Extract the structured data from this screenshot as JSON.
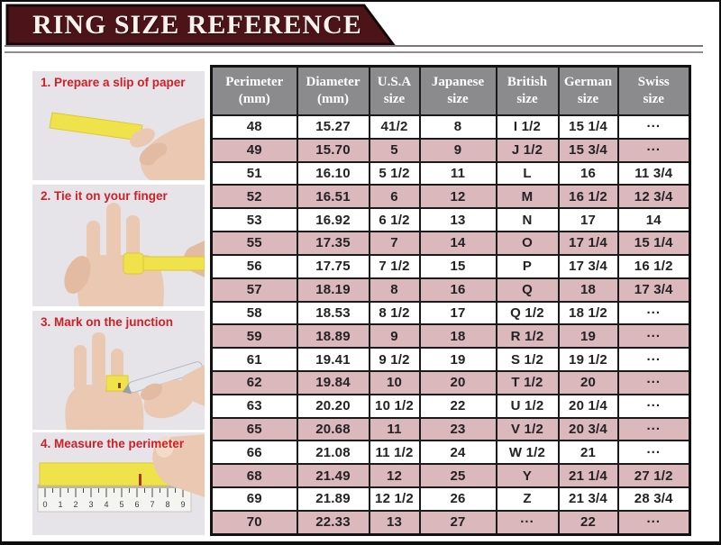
{
  "banner": {
    "title": "RING SIZE REFERENCE"
  },
  "steps": [
    {
      "label": "1. Prepare a slip of paper",
      "icon": "hand-holding-paper-slip"
    },
    {
      "label": "2. Tie it on your finger",
      "icon": "paper-wrapped-on-finger"
    },
    {
      "label": "3. Mark on the junction",
      "icon": "pen-marking-paper-junction"
    },
    {
      "label": "4. Measure the perimeter",
      "icon": "strip-on-ruler-with-finger",
      "ruler_numbers": [
        "0",
        "1",
        "2",
        "3",
        "4",
        "5",
        "6",
        "7",
        "8",
        "9"
      ]
    }
  ],
  "table": {
    "headers": [
      {
        "key": "perimeter",
        "line1": "Perimeter",
        "line2": "(mm)"
      },
      {
        "key": "diameter",
        "line1": "Diameter",
        "line2": "(mm)"
      },
      {
        "key": "usa",
        "line1": "U.S.A",
        "line2": "size"
      },
      {
        "key": "japanese",
        "line1": "Japanese",
        "line2": "size"
      },
      {
        "key": "british",
        "line1": "British",
        "line2": "size"
      },
      {
        "key": "german",
        "line1": "German",
        "line2": "size"
      },
      {
        "key": "swiss",
        "line1": "Swiss",
        "line2": "size"
      }
    ]
  },
  "chart_data": {
    "type": "table",
    "title": "RING SIZE REFERENCE",
    "columns": [
      "Perimeter (mm)",
      "Diameter (mm)",
      "U.S.A size",
      "Japanese size",
      "British size",
      "German size",
      "Swiss size"
    ],
    "rows": [
      [
        "48",
        "15.27",
        "41/2",
        "8",
        "I 1/2",
        "15 1/4",
        "···"
      ],
      [
        "49",
        "15.70",
        "5",
        "9",
        "J 1/2",
        "15 3/4",
        "···"
      ],
      [
        "51",
        "16.10",
        "5 1/2",
        "11",
        "L",
        "16",
        "11 3/4"
      ],
      [
        "52",
        "16.51",
        "6",
        "12",
        "M",
        "16 1/2",
        "12 3/4"
      ],
      [
        "53",
        "16.92",
        "6 1/2",
        "13",
        "N",
        "17",
        "14"
      ],
      [
        "55",
        "17.35",
        "7",
        "14",
        "O",
        "17 1/4",
        "15 1/4"
      ],
      [
        "56",
        "17.75",
        "7 1/2",
        "15",
        "P",
        "17 3/4",
        "16 1/2"
      ],
      [
        "57",
        "18.19",
        "8",
        "16",
        "Q",
        "18",
        "17 3/4"
      ],
      [
        "58",
        "18.53",
        "8 1/2",
        "17",
        "Q 1/2",
        "18 1/2",
        "···"
      ],
      [
        "59",
        "18.89",
        "9",
        "18",
        "R 1/2",
        "19",
        "···"
      ],
      [
        "61",
        "19.41",
        "9 1/2",
        "19",
        "S 1/2",
        "19 1/2",
        "···"
      ],
      [
        "62",
        "19.84",
        "10",
        "20",
        "T 1/2",
        "20",
        "···"
      ],
      [
        "63",
        "20.20",
        "10 1/2",
        "22",
        "U 1/2",
        "20 1/4",
        "···"
      ],
      [
        "65",
        "20.68",
        "11",
        "23",
        "V 1/2",
        "20 3/4",
        "···"
      ],
      [
        "66",
        "21.08",
        "11 1/2",
        "24",
        "W 1/2",
        "21",
        "···"
      ],
      [
        "68",
        "21.49",
        "12",
        "25",
        "Y",
        "21 1/4",
        "27 1/2"
      ],
      [
        "69",
        "21.89",
        "12 1/2",
        "26",
        "Z",
        "21 3/4",
        "28 3/4"
      ],
      [
        "70",
        "22.33",
        "13",
        "27",
        "···",
        "22",
        "···"
      ]
    ]
  },
  "colors": {
    "banner_bg": "#4c1418",
    "banner_outline": "#160808",
    "header_bg": "#8b8b8d",
    "row_pink": "#dab8bc",
    "row_white": "#ffffff",
    "grid_border": "#1a1a1a",
    "step_text_red": "#cd2027",
    "panel_bg": "#e6e4e9",
    "paper_yellow": "#f0e24b",
    "skin": "#ebc8b1",
    "divider_gray": "#7c7478"
  }
}
